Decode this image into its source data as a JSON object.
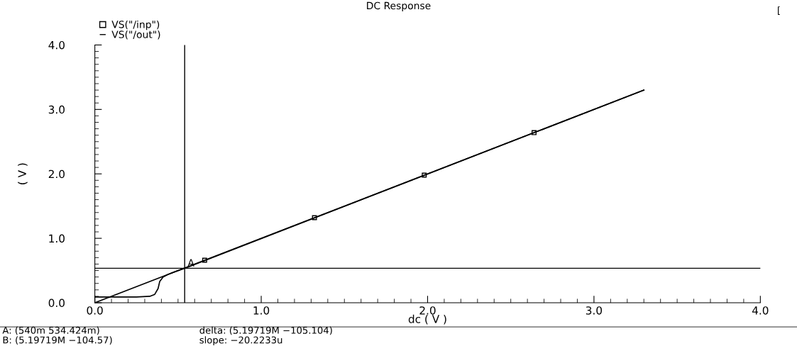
{
  "chart_data": {
    "type": "line",
    "title": "DC Response",
    "xlabel": "dc ( V )",
    "ylabel": "( V )",
    "x": [
      0,
      0.66,
      1.32,
      1.98,
      2.64,
      3.3
    ],
    "series": [
      {
        "name": "VS(\"/inp\")",
        "color": "#000000",
        "marker": "square",
        "values": [
          0,
          0.66,
          1.32,
          1.98,
          2.64,
          3.3
        ]
      },
      {
        "name": "VS(\"/out\")",
        "color": "#000000",
        "x": [
          0,
          0.25,
          0.33,
          0.36,
          0.38,
          0.39,
          0.41,
          0.44,
          0.48,
          0.54,
          3.3
        ],
        "values": [
          0.09,
          0.09,
          0.1,
          0.13,
          0.22,
          0.33,
          0.4,
          0.44,
          0.48,
          0.534,
          3.3
        ]
      }
    ],
    "xlim": [
      0,
      4
    ],
    "ylim": [
      0,
      4
    ],
    "xticks": [
      {
        "value": 0,
        "label": "0.0"
      },
      {
        "value": 1,
        "label": "1.0"
      },
      {
        "value": 2,
        "label": "2.0"
      },
      {
        "value": 3,
        "label": "3.0"
      },
      {
        "value": 4,
        "label": "4.0"
      }
    ],
    "yticks": [
      {
        "value": 0,
        "label": "0.0"
      },
      {
        "value": 1,
        "label": "1.0"
      },
      {
        "value": 2,
        "label": "2.0"
      },
      {
        "value": 3,
        "label": "3.0"
      },
      {
        "value": 4,
        "label": "4.0"
      }
    ],
    "ref_lines": [
      {
        "axis": "x",
        "value": 0.54,
        "color": "#000000"
      },
      {
        "axis": "y",
        "value": 0.534424,
        "color": "#000000"
      }
    ],
    "annotations": [
      {
        "text": "A",
        "x": 0.54,
        "y": 0.534424
      },
      "A: (540m 534.424m)",
      "B: (5.19719M −104.57)",
      "delta: (5.19719M −105.104)",
      "slope: −20.2233u",
      "["
    ],
    "legend": "top left",
    "grid": false
  }
}
